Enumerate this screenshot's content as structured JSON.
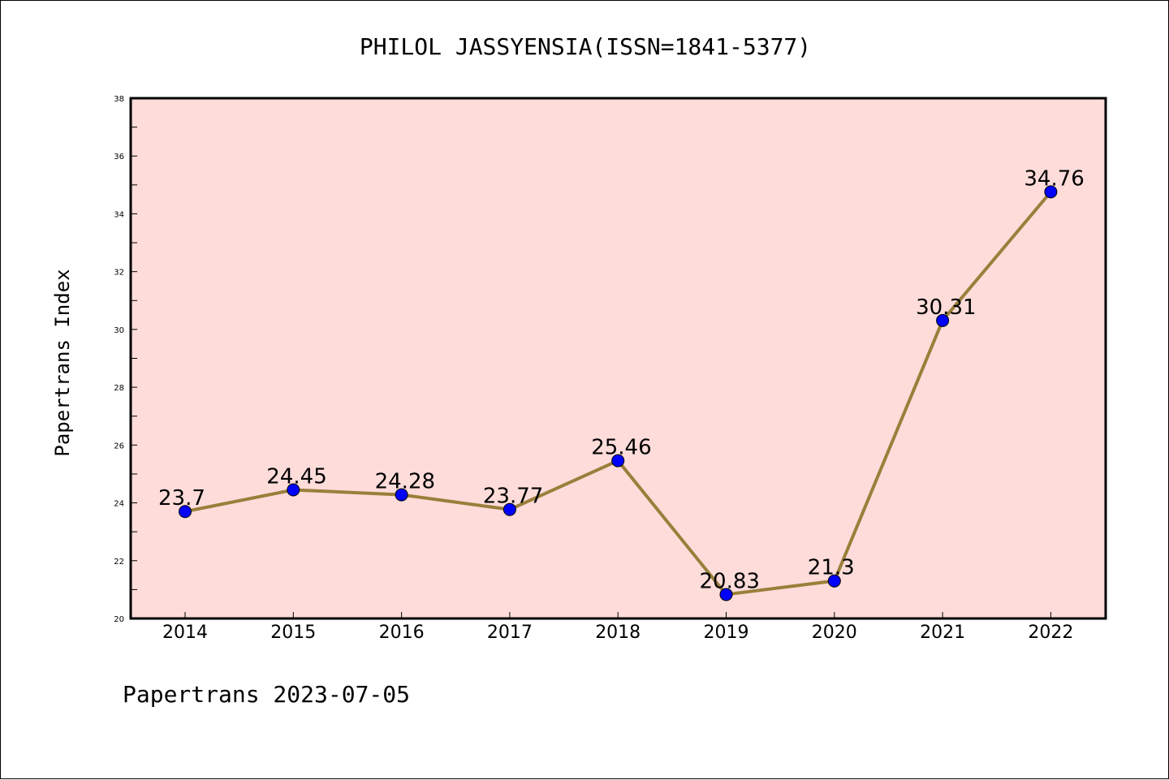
{
  "chart_data": {
    "type": "line",
    "title": "PHILOL JASSYENSIA(ISSN=1841-5377)",
    "xlabel": "",
    "ylabel": "Papertrans Index",
    "footer": "Papertrans 2023-07-05",
    "categories": [
      "2014",
      "2015",
      "2016",
      "2017",
      "2018",
      "2019",
      "2020",
      "2021",
      "2022"
    ],
    "series": [
      {
        "values": [
          23.7,
          24.45,
          24.28,
          23.77,
          25.46,
          20.83,
          21.3,
          30.31,
          34.76
        ],
        "labels": [
          "23.7",
          "24.45",
          "24.28",
          "23.77",
          "25.46",
          "20.83",
          "21.3",
          "30.31",
          "34.76"
        ]
      }
    ],
    "ylim": [
      20,
      38
    ],
    "yticks": [
      "20",
      "22",
      "24",
      "26",
      "28",
      "30",
      "32",
      "34",
      "36",
      "38"
    ],
    "grid": false,
    "legend": "none",
    "colors": {
      "plot_background": "#fddcda",
      "line": "#9a7f3a",
      "marker": "#0000ff",
      "axis": "#000000"
    }
  }
}
